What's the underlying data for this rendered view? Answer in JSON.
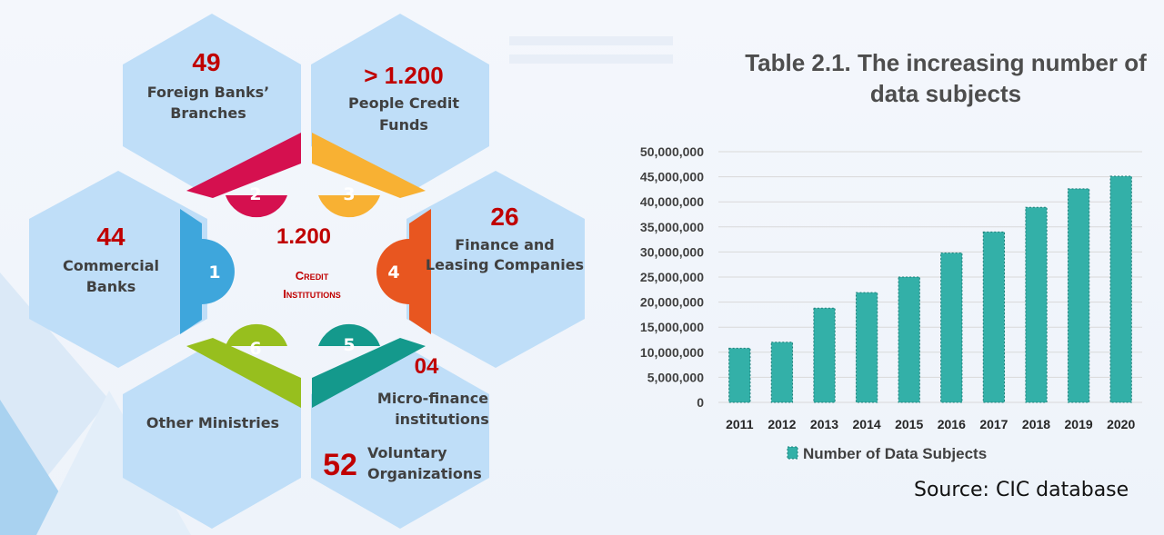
{
  "infographic": {
    "center": {
      "value": "1.200",
      "line1": "Credit",
      "line2": "Institutions"
    },
    "segments": [
      {
        "number": "1",
        "color": "#3ea6dc"
      },
      {
        "number": "2",
        "color": "#d5104f"
      },
      {
        "number": "3",
        "color": "#f8b133"
      },
      {
        "number": "4",
        "color": "#e85620"
      },
      {
        "number": "5",
        "color": "#14998c"
      },
      {
        "number": "6",
        "color": "#97bf1e"
      }
    ],
    "hexes": {
      "commercial": {
        "value": "44",
        "line1": "Commercial",
        "line2": "Banks"
      },
      "foreign": {
        "value": "49",
        "line1": "Foreign Banks’",
        "line2": "Branches"
      },
      "people": {
        "value": "> 1.200",
        "line1": "People Credit",
        "line2": "Funds"
      },
      "finance": {
        "value": "26",
        "line1": "Finance and",
        "line2": "Leasing Companies"
      },
      "micro": {
        "value": "04",
        "line1": "Micro-finance",
        "line2": "institutions"
      },
      "voluntary": {
        "value": "52",
        "line1": "Voluntary",
        "line2": "Organizations"
      },
      "ministries": {
        "line1": "Other Ministries"
      }
    }
  },
  "chart_title": {
    "line1": "Table 2.1. The increasing number of",
    "line2": "data subjects"
  },
  "chart_data": {
    "type": "bar",
    "title": "Table 2.1. The increasing number of data subjects",
    "categories": [
      "2011",
      "2012",
      "2013",
      "2014",
      "2015",
      "2016",
      "2017",
      "2018",
      "2019",
      "2020"
    ],
    "series": [
      {
        "name": "Number of Data Subjects",
        "values": [
          10800000,
          12000000,
          18800000,
          21900000,
          25000000,
          29800000,
          34000000,
          38900000,
          42600000,
          45100000
        ]
      }
    ],
    "ylim": [
      0,
      50000000
    ],
    "yticks": [
      "0",
      "5,000,000",
      "10,000,000",
      "15,000,000",
      "20,000,000",
      "25,000,000",
      "30,000,000",
      "35,000,000",
      "40,000,000",
      "45,000,000",
      "50,000,000"
    ],
    "grid": true,
    "legend_position": "bottom",
    "bar_color": "#33b0a8",
    "xlabel": "",
    "ylabel": ""
  },
  "source": "Source: CIC database"
}
